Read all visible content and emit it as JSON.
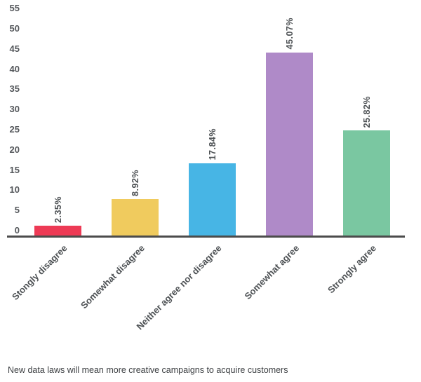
{
  "chart_data": {
    "type": "bar",
    "title": "",
    "caption": "New data laws will mean more creative campaigns to acquire customers",
    "categories": [
      "Stongly disagree",
      "Somewhat disagree",
      "Neither agree nor disagree",
      "Somewhat agree",
      "Strongly agree"
    ],
    "values": [
      2.35,
      8.92,
      17.84,
      45.07,
      25.82
    ],
    "value_labels": [
      "2.35%",
      "8.92%",
      "17.84%",
      "45.07%",
      "25.82%"
    ],
    "bar_colors": [
      "#ed3a55",
      "#f0cb5e",
      "#47b5e5",
      "#af8ac8",
      "#7ac7a1"
    ],
    "y_ticks": [
      0,
      5,
      10,
      15,
      20,
      25,
      30,
      35,
      40,
      45,
      50,
      55
    ],
    "ylim": [
      0,
      55
    ],
    "xlabel": "",
    "ylabel": "",
    "grid": false,
    "legend": "none"
  },
  "colors": {
    "axis_line": "#4c4c4c",
    "tick_text": "#54575b",
    "value_label_text": "#4d5154",
    "category_text": "#4d5154",
    "caption_text": "#3d4043",
    "background": "#ffffff"
  }
}
